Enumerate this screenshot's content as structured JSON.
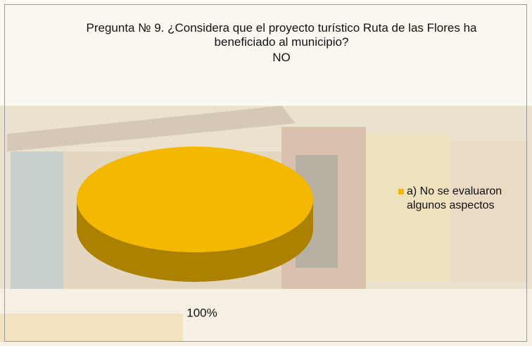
{
  "chart_data": {
    "type": "pie",
    "title": "Pregunta № 9.  ¿Considera que el proyecto turístico Ruta de las Flores ha beneficiado al municipio?",
    "subtitle": "NO",
    "categories": [
      "a) No se evaluaron algunos aspectos"
    ],
    "values": [
      100
    ],
    "value_labels": [
      "100%"
    ],
    "colors": [
      "#f5b800"
    ],
    "legend": "right"
  }
}
